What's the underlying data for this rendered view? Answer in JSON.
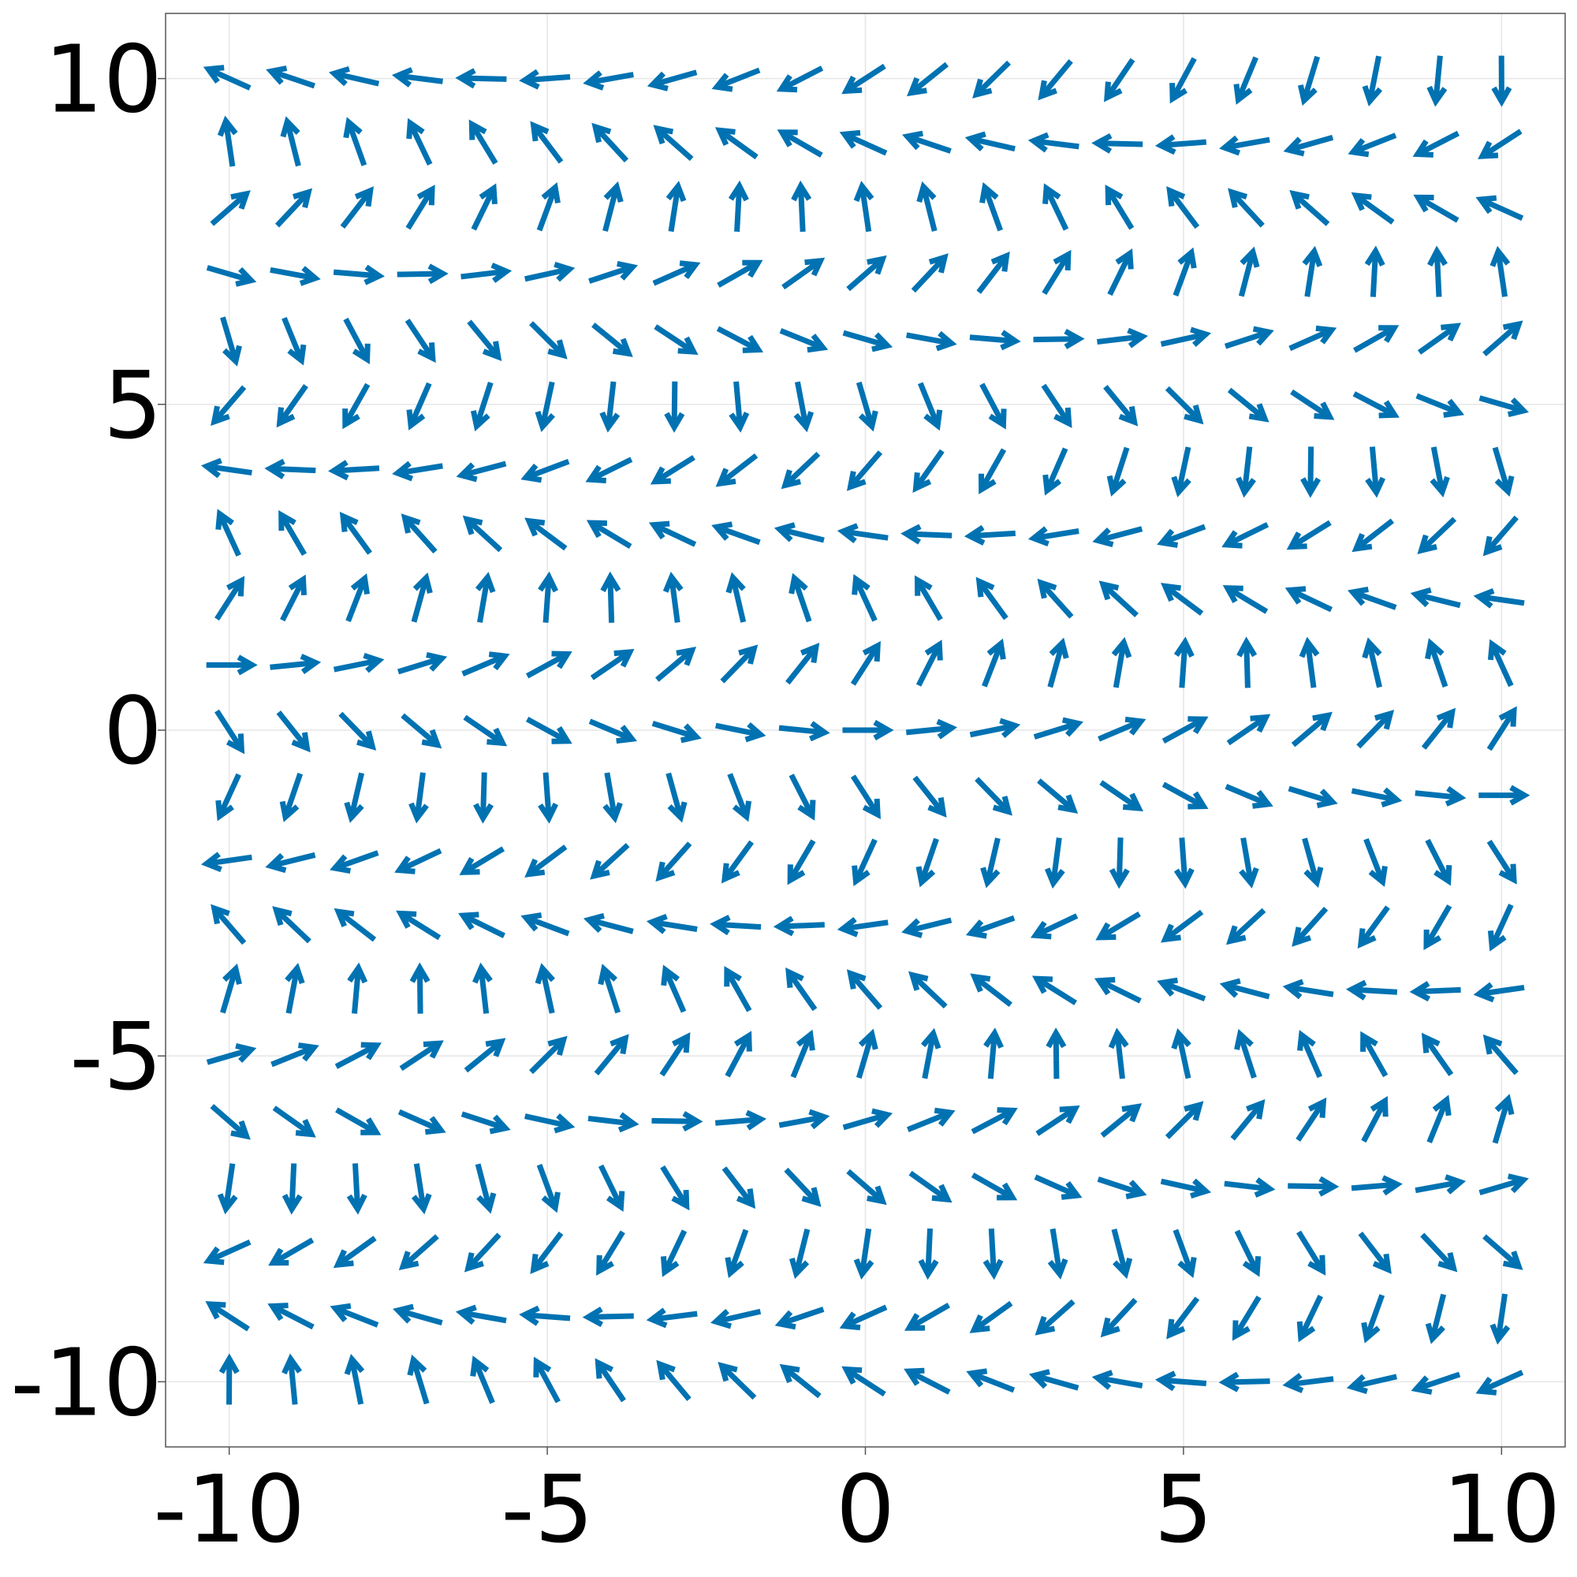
{
  "chart_data": {
    "type": "quiver",
    "title": "",
    "xlabel": "",
    "ylabel": "",
    "xlim": [
      -11,
      11
    ],
    "ylim": [
      -11,
      11
    ],
    "grid": true,
    "x_ticks": [
      -10,
      -5,
      0,
      5,
      10
    ],
    "y_ticks": [
      -10,
      -5,
      0,
      5,
      10
    ],
    "x_tick_labels": [
      "-10",
      "-5",
      "0",
      "5",
      "10"
    ],
    "y_tick_labels": [
      "-10",
      "-5",
      "0",
      "5",
      "10"
    ],
    "grid_x_range": [
      -10,
      10
    ],
    "grid_y_range": [
      -10,
      10
    ],
    "grid_points_per_axis": 21,
    "vector_field": {
      "u": "cos(y + 0.1*x)",
      "v": "sin(y + 0.1*x)"
    },
    "arrow_color": "#0072b2"
  }
}
